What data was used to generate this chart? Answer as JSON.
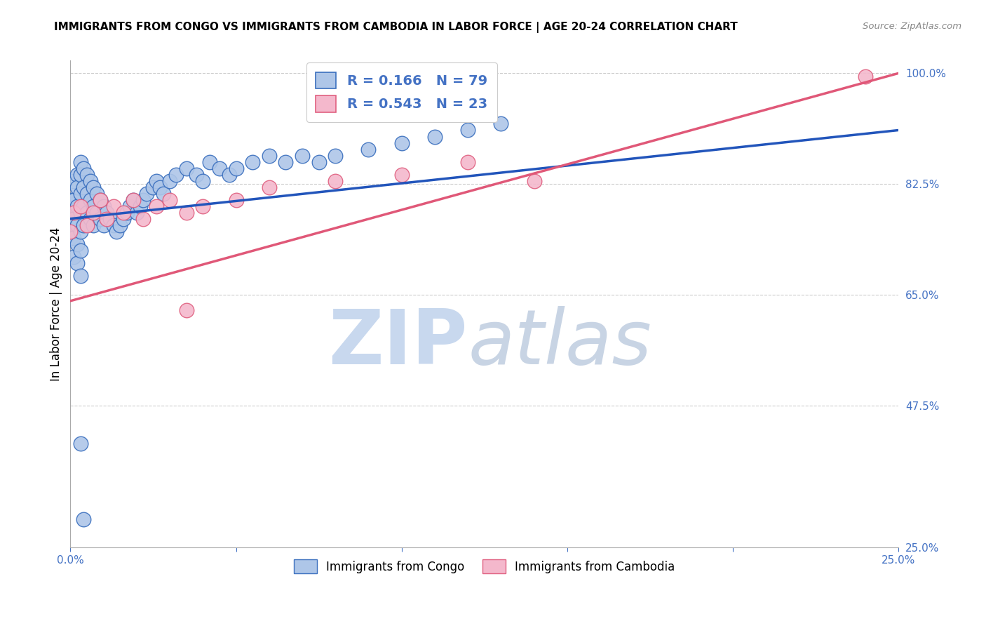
{
  "title": "IMMIGRANTS FROM CONGO VS IMMIGRANTS FROM CAMBODIA IN LABOR FORCE | AGE 20-24 CORRELATION CHART",
  "source": "Source: ZipAtlas.com",
  "ylabel": "In Labor Force | Age 20-24",
  "xlim": [
    0.0,
    0.25
  ],
  "ylim": [
    0.25,
    1.02
  ],
  "y_ticks": [
    0.25,
    0.475,
    0.65,
    0.825,
    1.0
  ],
  "y_tick_labels": [
    "25.0%",
    "47.5%",
    "65.0%",
    "82.5%",
    "100.0%"
  ],
  "x_ticks": [
    0.0,
    0.05,
    0.1,
    0.15,
    0.2,
    0.25
  ],
  "x_tick_labels": [
    "0.0%",
    "",
    "",
    "",
    "",
    "25.0%"
  ],
  "congo_color": "#aec6e8",
  "congo_edge_color": "#3a6fbe",
  "cambodia_color": "#f4b8cc",
  "cambodia_edge_color": "#e06080",
  "congo_R": 0.166,
  "congo_N": 79,
  "cambodia_R": 0.543,
  "cambodia_N": 23,
  "congo_line_color": "#2255bb",
  "cambodia_line_color": "#e05878",
  "congo_line_style": "solid",
  "cambodia_line_style": "solid",
  "watermark_zip_color": "#c8d8ee",
  "watermark_atlas_color": "#c8d4e4",
  "congo_x": [
    0.0,
    0.0,
    0.0,
    0.001,
    0.001,
    0.001,
    0.001,
    0.001,
    0.002,
    0.002,
    0.002,
    0.002,
    0.002,
    0.002,
    0.003,
    0.003,
    0.003,
    0.003,
    0.003,
    0.003,
    0.003,
    0.004,
    0.004,
    0.004,
    0.004,
    0.005,
    0.005,
    0.005,
    0.006,
    0.006,
    0.006,
    0.007,
    0.007,
    0.007,
    0.008,
    0.008,
    0.009,
    0.009,
    0.01,
    0.01,
    0.011,
    0.012,
    0.013,
    0.014,
    0.015,
    0.016,
    0.017,
    0.018,
    0.019,
    0.02,
    0.021,
    0.022,
    0.023,
    0.025,
    0.026,
    0.027,
    0.028,
    0.03,
    0.032,
    0.035,
    0.038,
    0.04,
    0.042,
    0.045,
    0.048,
    0.05,
    0.055,
    0.06,
    0.065,
    0.07,
    0.075,
    0.08,
    0.09,
    0.1,
    0.11,
    0.12,
    0.13,
    0.003,
    0.004
  ],
  "congo_y": [
    0.8,
    0.77,
    0.74,
    0.83,
    0.8,
    0.77,
    0.74,
    0.71,
    0.84,
    0.82,
    0.79,
    0.76,
    0.73,
    0.7,
    0.86,
    0.84,
    0.81,
    0.78,
    0.75,
    0.72,
    0.68,
    0.85,
    0.82,
    0.79,
    0.76,
    0.84,
    0.81,
    0.78,
    0.83,
    0.8,
    0.77,
    0.82,
    0.79,
    0.76,
    0.81,
    0.78,
    0.8,
    0.77,
    0.79,
    0.76,
    0.78,
    0.77,
    0.76,
    0.75,
    0.76,
    0.77,
    0.78,
    0.79,
    0.8,
    0.78,
    0.79,
    0.8,
    0.81,
    0.82,
    0.83,
    0.82,
    0.81,
    0.83,
    0.84,
    0.85,
    0.84,
    0.83,
    0.86,
    0.85,
    0.84,
    0.85,
    0.86,
    0.87,
    0.86,
    0.87,
    0.86,
    0.87,
    0.88,
    0.89,
    0.9,
    0.91,
    0.92,
    0.415,
    0.295
  ],
  "cambodia_x": [
    0.0,
    0.001,
    0.003,
    0.005,
    0.007,
    0.009,
    0.011,
    0.013,
    0.016,
    0.019,
    0.022,
    0.026,
    0.03,
    0.035,
    0.04,
    0.05,
    0.06,
    0.08,
    0.1,
    0.12,
    0.14,
    0.035,
    0.24
  ],
  "cambodia_y": [
    0.75,
    0.78,
    0.79,
    0.76,
    0.78,
    0.8,
    0.77,
    0.79,
    0.78,
    0.8,
    0.77,
    0.79,
    0.8,
    0.78,
    0.79,
    0.8,
    0.82,
    0.83,
    0.84,
    0.86,
    0.83,
    0.625,
    0.995
  ]
}
